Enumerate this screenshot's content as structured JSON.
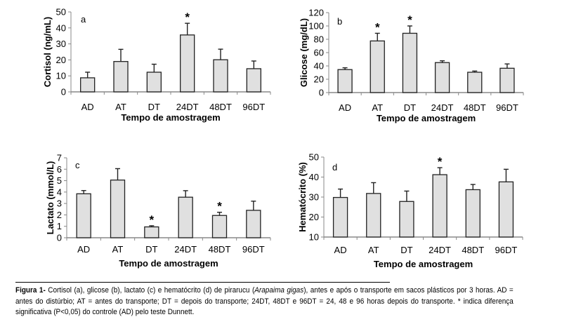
{
  "chart_data": [
    {
      "type": "bar",
      "panel": "a",
      "title": "",
      "categories": [
        "AD",
        "AT",
        "DT",
        "24DT",
        "48DT",
        "96DT"
      ],
      "values": [
        8.8,
        19.0,
        12.3,
        35.6,
        20.1,
        14.5
      ],
      "errors": [
        3.5,
        7.6,
        5.0,
        7.3,
        6.6,
        4.8
      ],
      "significant": [
        false,
        false,
        false,
        true,
        false,
        false
      ],
      "xlabel": "Tempo de amostragem",
      "ylabel": "Cortisol (ng/mL)",
      "ylim": [
        0,
        50
      ],
      "yticks": [
        0,
        10,
        20,
        30,
        40,
        50
      ],
      "bar_color": "#e0e0e0",
      "grid": false,
      "legend": "none"
    },
    {
      "type": "bar",
      "panel": "b",
      "title": "",
      "categories": [
        "AD",
        "AT",
        "DT",
        "24DT",
        "48DT",
        "96DT"
      ],
      "values": [
        34.5,
        77.5,
        89.0,
        45.0,
        30.5,
        36.5
      ],
      "errors": [
        2.7,
        11.5,
        11.0,
        2.7,
        1.8,
        6.5
      ],
      "significant": [
        false,
        true,
        true,
        false,
        false,
        false
      ],
      "xlabel": "Tempo de amostragem",
      "ylabel": "Glicose (mg/dL)",
      "ylim": [
        0,
        120
      ],
      "yticks": [
        0,
        20,
        40,
        60,
        80,
        100,
        120
      ],
      "bar_color": "#e0e0e0",
      "grid": false,
      "legend": "none"
    },
    {
      "type": "bar",
      "panel": "c",
      "title": "",
      "categories": [
        "AD",
        "AT",
        "DT",
        "24DT",
        "48DT",
        "96DT"
      ],
      "values": [
        3.85,
        5.05,
        0.95,
        3.55,
        1.95,
        2.4
      ],
      "errors": [
        0.28,
        1.0,
        0.1,
        0.57,
        0.28,
        0.8
      ],
      "significant": [
        false,
        false,
        true,
        false,
        true,
        false
      ],
      "xlabel": "Tempo de amostragem",
      "ylabel": "Lactato (mmol/L)",
      "ylim": [
        0,
        7
      ],
      "yticks": [
        0,
        1,
        2,
        3,
        4,
        5,
        6,
        7
      ],
      "bar_color": "#e0e0e0",
      "grid": false,
      "legend": "none"
    },
    {
      "type": "bar",
      "panel": "d",
      "title": "",
      "categories": [
        "AD",
        "AT",
        "DT",
        "24DT",
        "48DT",
        "96DT"
      ],
      "values": [
        29.8,
        31.8,
        27.8,
        41.2,
        33.7,
        37.6
      ],
      "errors": [
        4.2,
        5.4,
        5.2,
        3.5,
        2.6,
        6.3
      ],
      "significant": [
        false,
        false,
        false,
        true,
        false,
        false
      ],
      "xlabel": "Tempo de amostragem",
      "ylabel": "Hematócrito (%)",
      "ylim": [
        10,
        50
      ],
      "yticks": [
        10,
        20,
        30,
        40,
        50
      ],
      "bar_color": "#e0e0e0",
      "grid": false,
      "legend": "none"
    }
  ],
  "significance_marker": "*",
  "caption": {
    "label": "Figura 1-",
    "text_1": " Cortisol (a), glicose (b), lactato (c) e hematócrito (d) de pirarucu (",
    "species": "Arapaima gigas",
    "text_2": "), antes e após o transporte em sacos plásticos por 3 horas. AD = antes do distúrbio; AT = antes do transporte; DT = depois do transporte; 24DT, 48DT e 96DT = 24, 48 e 96 horas depois do transporte. * indica diferença significativa (P<0,05) do controle (AD) pelo teste Dunnett."
  }
}
